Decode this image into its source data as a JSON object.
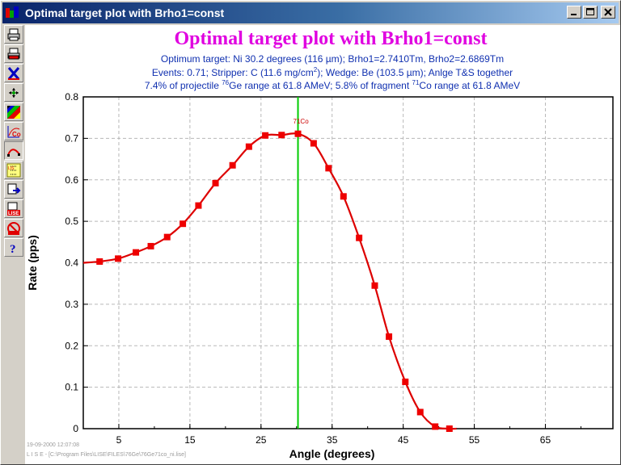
{
  "window": {
    "title": "Optimal target plot with Brho1=const",
    "minimize_label": "_",
    "maximize_label": "□",
    "close_label": "✕"
  },
  "toolbar": {
    "items": [
      {
        "name": "print-icon"
      },
      {
        "name": "print-preview-icon"
      },
      {
        "name": "close-x-icon"
      },
      {
        "name": "scale-icon"
      },
      {
        "name": "color-palette-icon"
      },
      {
        "name": "cobalt-plot-icon"
      },
      {
        "name": "curve-icon"
      },
      {
        "name": "grid-settings-icon"
      },
      {
        "name": "export-icon"
      },
      {
        "name": "save-lise-icon"
      },
      {
        "name": "no-lise-icon"
      },
      {
        "name": "help-icon"
      }
    ]
  },
  "header": {
    "line1": "Optimum target: Ni 30.2 degrees (116 µm);  Brho1=2.7410Tm, Brho2=2.6869Tm",
    "line2_a": "Events: 0.71;  Stripper: C (11.6 mg/cm",
    "line2_sup": "2",
    "line2_b": ");  Wedge: Be (103.5 µm);  Anlge T&S together",
    "line3_a": "7.4% of projectile ",
    "line3_sup1": "76",
    "line3_b": "Ge range at 61.8 AMeV; 5.8% of fragment ",
    "line3_sup2": "71",
    "line3_c": "Co range at 61.8 AMeV"
  },
  "footer": {
    "timestamp": "19-09-2000  12:07:08",
    "path": "L I S E  -  [C:\\Program Files\\LISE\\FILES\\76Ge\\76Ge71co_ni.lise]"
  },
  "colors": {
    "title": "#e000e0",
    "info": "#1030b0",
    "curve": "#dd0000",
    "marker": "#ee0000",
    "optimum_line": "#00cc00"
  },
  "chart_data": {
    "type": "line",
    "title": "Optimal target plot with Brho1=const",
    "xlabel": "Angle (degrees)",
    "ylabel": "Rate (pps)",
    "xlim": [
      0,
      74.5
    ],
    "ylim": [
      0,
      0.8
    ],
    "xticks": [
      5,
      15,
      25,
      35,
      45,
      55,
      65
    ],
    "yticks": [
      0,
      0.1,
      0.2,
      0.3,
      0.4,
      0.5,
      0.6,
      0.7,
      0.8
    ],
    "grid": true,
    "optimum_x": 30.2,
    "optimum_label": "71Co",
    "series": [
      {
        "x": [
          2.3,
          4.9,
          7.4,
          9.5,
          11.8,
          14.0,
          16.2,
          18.6,
          21.0,
          23.3,
          25.6,
          27.9,
          30.2,
          32.4,
          34.5,
          36.6,
          38.8,
          41.0,
          43.0,
          45.3,
          47.4,
          49.5,
          51.5
        ],
        "y": [
          0.403,
          0.41,
          0.425,
          0.44,
          0.462,
          0.494,
          0.538,
          0.592,
          0.635,
          0.68,
          0.707,
          0.708,
          0.711,
          0.688,
          0.628,
          0.56,
          0.46,
          0.345,
          0.222,
          0.113,
          0.04,
          0.005,
          0.0
        ]
      }
    ]
  }
}
